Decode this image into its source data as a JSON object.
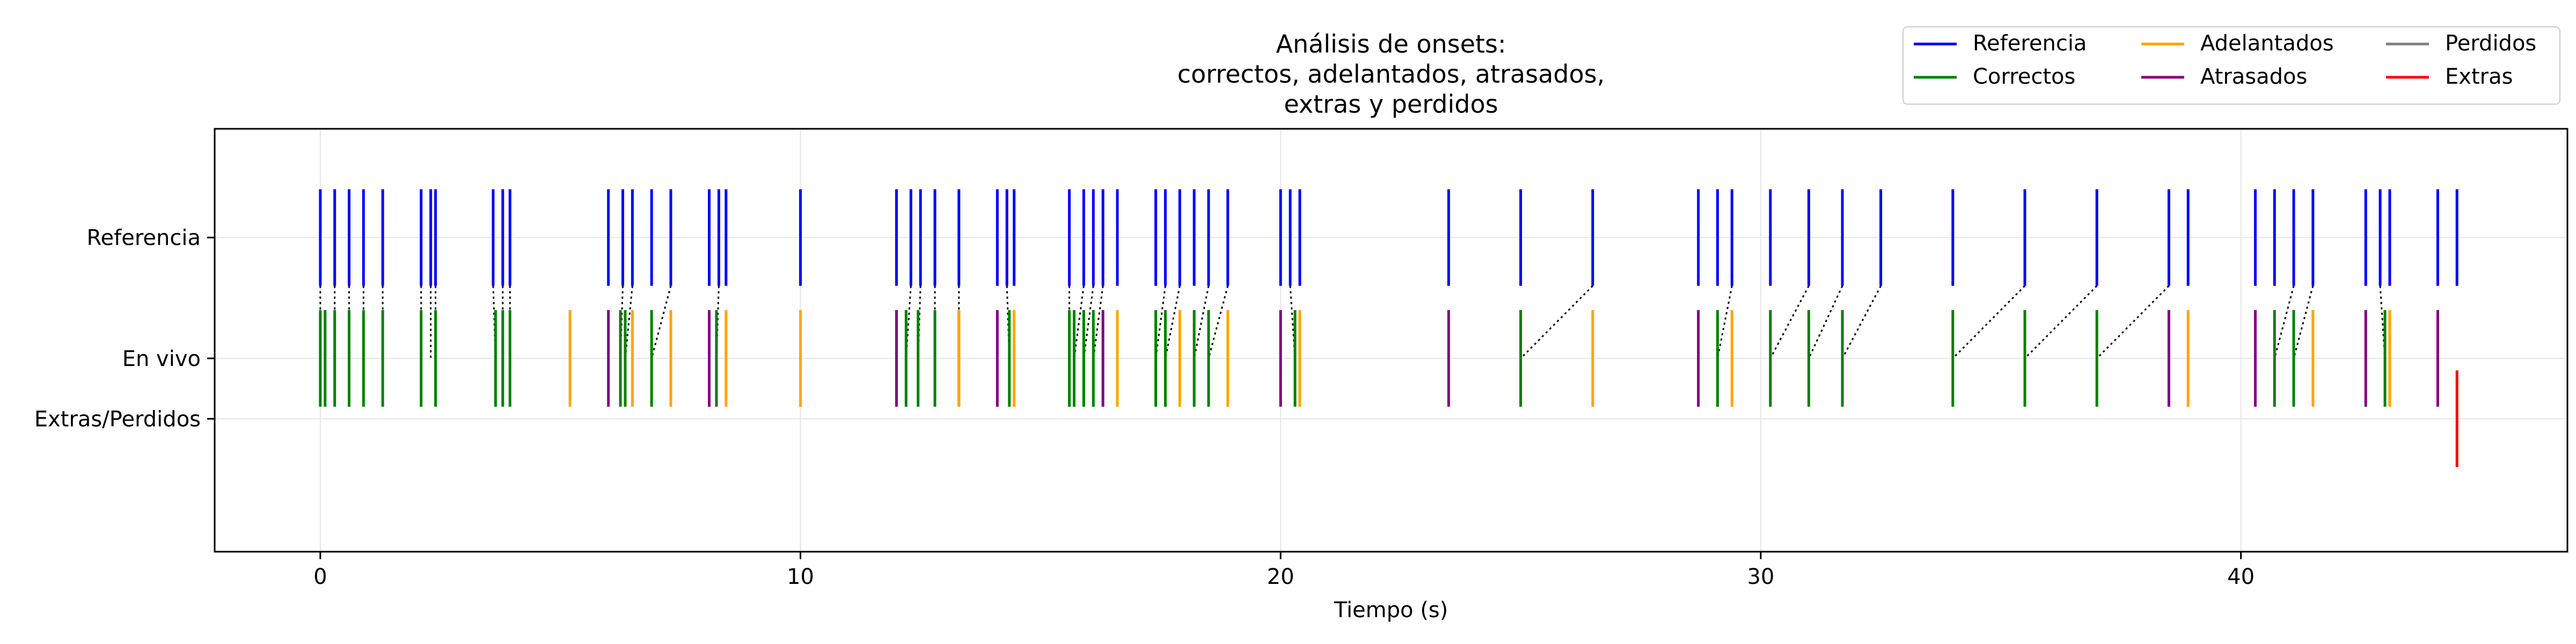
{
  "chart_data": {
    "type": "eventplot",
    "title": [
      "Análisis de onsets:",
      "correctos, adelantados, atrasados,",
      "extras y perdidos"
    ],
    "xlabel": "Tiempo (s)",
    "ylabel": "",
    "xlim": [
      -2.2,
      46.8
    ],
    "ylim": [
      -1.6,
      1.9
    ],
    "xticks": [
      0,
      10,
      20,
      30,
      40
    ],
    "xtick_labels": [
      "0",
      "10",
      "20",
      "30",
      "40"
    ],
    "rows": [
      {
        "key": "ref",
        "label": "Referencia",
        "y": 1.0
      },
      {
        "key": "live",
        "label": "En vivo",
        "y": 0.0
      },
      {
        "key": "extra",
        "label": "Extras/Perdidos",
        "y": -0.5
      }
    ],
    "grid": true,
    "legend": [
      {
        "key": "ref",
        "label": "Referencia",
        "color": "#0000ff"
      },
      {
        "key": "correct",
        "label": "Correctos",
        "color": "#008000"
      },
      {
        "key": "early",
        "label": "Adelantados",
        "color": "#ffa500"
      },
      {
        "key": "late",
        "label": "Atrasados",
        "color": "#800080"
      },
      {
        "key": "missed",
        "label": "Perdidos",
        "color": "#808080"
      },
      {
        "key": "extra",
        "label": "Extras",
        "color": "#ff0000"
      }
    ],
    "legend_position": "top-right",
    "colors": {
      "ref": "#0000ff",
      "correct": "#008000",
      "early": "#ffa500",
      "late": "#800080",
      "missed": "#808080",
      "extra": "#ff0000",
      "link": "#000000"
    },
    "series": {
      "reference": [
        0.0,
        0.3,
        0.6,
        0.9,
        1.3,
        2.1,
        2.3,
        2.4,
        3.6,
        3.8,
        3.95,
        6.0,
        6.3,
        6.5,
        6.9,
        7.3,
        8.1,
        8.3,
        8.45,
        10.0,
        12.0,
        12.3,
        12.5,
        12.8,
        13.3,
        14.1,
        14.3,
        14.45,
        15.6,
        15.9,
        16.1,
        16.3,
        16.6,
        17.4,
        17.6,
        17.9,
        18.2,
        18.5,
        18.9,
        20.0,
        20.2,
        20.4,
        23.5,
        25.0,
        26.5,
        28.7,
        29.1,
        29.4,
        30.2,
        31.0,
        31.7,
        32.5,
        34.0,
        35.5,
        37.0,
        38.5,
        38.9,
        40.3,
        40.7,
        41.1,
        41.5,
        42.6,
        42.9,
        43.1,
        44.1,
        44.5
      ],
      "correct": [
        0.0,
        0.1,
        0.3,
        0.6,
        0.9,
        1.3,
        2.1,
        2.4,
        3.65,
        3.8,
        3.95,
        6.25,
        6.35,
        6.9,
        8.25,
        12.2,
        12.45,
        12.8,
        13.3,
        14.35,
        15.6,
        15.7,
        15.9,
        16.1,
        17.4,
        17.6,
        18.2,
        18.5,
        20.3,
        25.0,
        29.1,
        30.2,
        31.0,
        31.7,
        34.0,
        35.5,
        37.0,
        40.7,
        41.1,
        43.0
      ],
      "early": [
        5.2,
        6.5,
        7.3,
        8.45,
        10.0,
        13.3,
        14.45,
        16.6,
        17.9,
        18.9,
        20.4,
        26.5,
        29.4,
        38.9,
        41.5,
        43.1
      ],
      "late": [
        6.0,
        8.1,
        12.0,
        14.1,
        16.3,
        20.0,
        23.5,
        28.7,
        38.5,
        40.3,
        42.6,
        44.1
      ],
      "missed": [],
      "extra": [
        44.5
      ],
      "links": [
        [
          0.0,
          0.0
        ],
        [
          0.3,
          0.3
        ],
        [
          0.6,
          0.6
        ],
        [
          0.9,
          0.9
        ],
        [
          1.3,
          1.3
        ],
        [
          2.1,
          2.1
        ],
        [
          2.3,
          2.3
        ],
        [
          2.4,
          2.4
        ],
        [
          3.6,
          3.65
        ],
        [
          3.8,
          3.8
        ],
        [
          3.95,
          3.95
        ],
        [
          6.3,
          6.25
        ],
        [
          6.5,
          6.35
        ],
        [
          7.3,
          6.9
        ],
        [
          8.3,
          8.25
        ],
        [
          12.3,
          12.2
        ],
        [
          12.5,
          12.45
        ],
        [
          12.8,
          12.8
        ],
        [
          13.3,
          13.3
        ],
        [
          14.3,
          14.35
        ],
        [
          15.6,
          15.6
        ],
        [
          15.9,
          15.7
        ],
        [
          16.1,
          15.9
        ],
        [
          16.3,
          16.1
        ],
        [
          17.6,
          17.4
        ],
        [
          17.9,
          17.6
        ],
        [
          18.5,
          18.2
        ],
        [
          18.9,
          18.5
        ],
        [
          20.2,
          20.3
        ],
        [
          26.5,
          25.0
        ],
        [
          29.4,
          29.1
        ],
        [
          31.0,
          30.2
        ],
        [
          31.7,
          31.0
        ],
        [
          32.5,
          31.7
        ],
        [
          35.5,
          34.0
        ],
        [
          37.0,
          35.5
        ],
        [
          38.5,
          37.0
        ],
        [
          41.1,
          40.7
        ],
        [
          41.5,
          41.1
        ],
        [
          42.9,
          43.0
        ]
      ]
    }
  }
}
